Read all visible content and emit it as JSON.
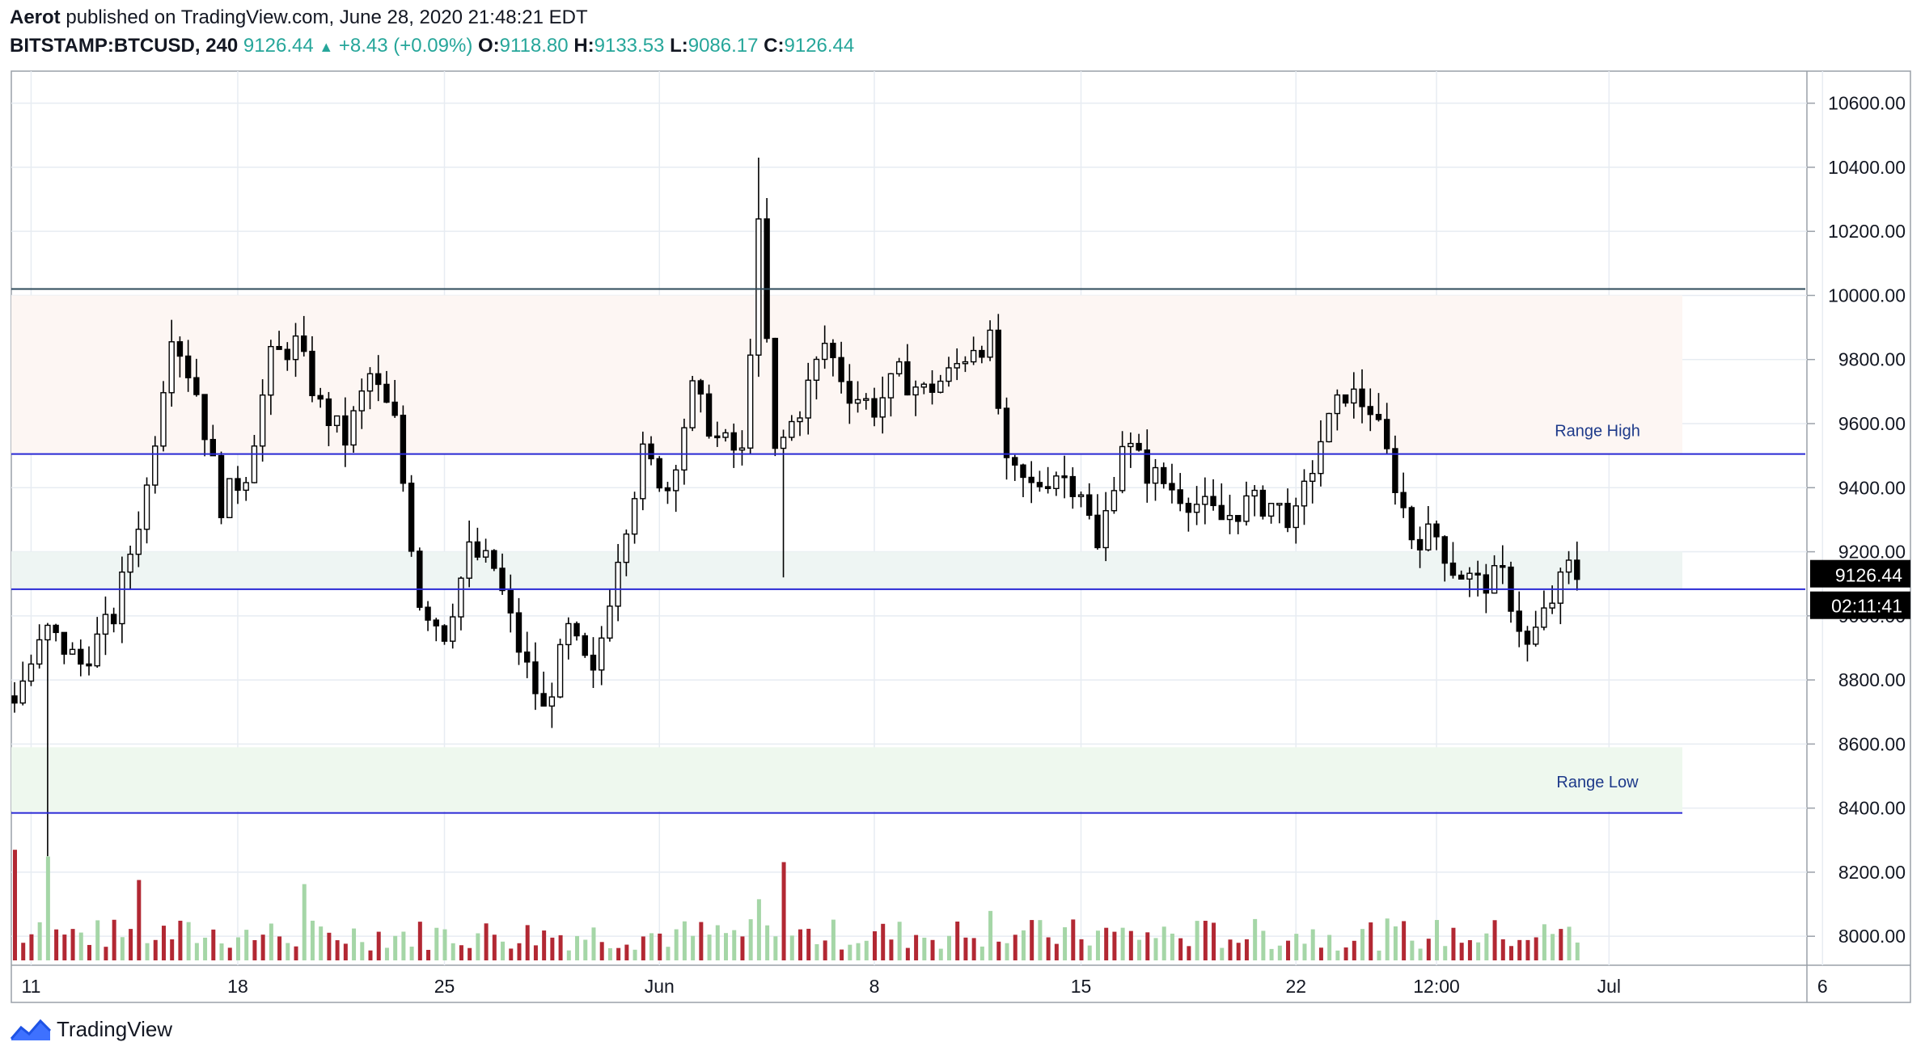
{
  "header": {
    "author": "Aerot",
    "published_text": "published on TradingView.com, June 28, 2020 21:48:21 EDT",
    "symbol": "BITSTAMP:BTCUSD, 240",
    "last": "9126.44",
    "change": "+8.43 (+0.09%)",
    "o_label": "O:",
    "o_value": "9118.80",
    "h_label": "H:",
    "h_value": "9133.53",
    "l_label": "L:",
    "l_value": "9086.17",
    "c_label": "C:",
    "c_value": "9126.44"
  },
  "footer": {
    "brand": "TradingView",
    "logo_icon": "tradingview-logo-icon"
  },
  "colors": {
    "up": "#26a69a",
    "down_volume": "#b22833",
    "up_volume": "#a5d6a7",
    "level_line": "#2929d4",
    "top_line": "#2e4a5a",
    "zone_top": "#fdf6f3",
    "zone_mid": "#eef5f3",
    "zone_low": "#eef8ee",
    "annotation": "#1e3a8a"
  },
  "chart_data": {
    "type": "candlestick",
    "title": "",
    "y_axis": {
      "ticks": [
        "10600.00",
        "10400.00",
        "10200.00",
        "10000.00",
        "9800.00",
        "9600.00",
        "9400.00",
        "9200.00",
        "9000.00",
        "8800.00",
        "8600.00",
        "8400.00",
        "8200.00",
        "8000.00"
      ],
      "range": [
        7950,
        10700
      ]
    },
    "x_axis": {
      "labels": [
        "11",
        "18",
        "25",
        "Jun",
        "8",
        "15",
        "22",
        "12:00",
        "Jul",
        "6"
      ]
    },
    "price_label": "9126.44",
    "countdown_label": "02:11:41",
    "levels": [
      {
        "name": "resistance",
        "value": 10020
      },
      {
        "name": "Range High",
        "value": 9505,
        "label": "Range High"
      },
      {
        "name": "support",
        "value": 9083
      },
      {
        "name": "Range Low",
        "value": 8385,
        "label": "Range Low"
      }
    ],
    "zones": [
      {
        "name": "upper-zone",
        "from": 9505,
        "to": 10000
      },
      {
        "name": "mid-zone",
        "from": 9083,
        "to": 9200
      },
      {
        "name": "low-zone",
        "from": 8390,
        "to": 8590
      }
    ],
    "price_path": [
      [
        0,
        8750
      ],
      [
        4,
        8950
      ],
      [
        8,
        8850
      ],
      [
        12,
        9000
      ],
      [
        16,
        9400
      ],
      [
        19,
        9900
      ],
      [
        22,
        9700
      ],
      [
        25,
        9350
      ],
      [
        28,
        9450
      ],
      [
        31,
        9800
      ],
      [
        34,
        9850
      ],
      [
        37,
        9650
      ],
      [
        40,
        9550
      ],
      [
        43,
        9750
      ],
      [
        46,
        9600
      ],
      [
        49,
        9050
      ],
      [
        52,
        8950
      ],
      [
        55,
        9200
      ],
      [
        58,
        9150
      ],
      [
        61,
        8900
      ],
      [
        64,
        8700
      ],
      [
        67,
        8950
      ],
      [
        70,
        8800
      ],
      [
        73,
        9200
      ],
      [
        76,
        9500
      ],
      [
        79,
        9400
      ],
      [
        82,
        9700
      ],
      [
        85,
        9550
      ],
      [
        88,
        9500
      ],
      [
        90,
        10200
      ],
      [
        92,
        9500
      ],
      [
        95,
        9650
      ],
      [
        98,
        9850
      ],
      [
        101,
        9700
      ],
      [
        104,
        9650
      ],
      [
        107,
        9750
      ],
      [
        110,
        9700
      ],
      [
        113,
        9750
      ],
      [
        116,
        9850
      ],
      [
        118,
        9850
      ],
      [
        120,
        9450
      ],
      [
        123,
        9400
      ],
      [
        126,
        9450
      ],
      [
        129,
        9400
      ],
      [
        131,
        9200
      ],
      [
        134,
        9550
      ],
      [
        137,
        9450
      ],
      [
        140,
        9400
      ],
      [
        143,
        9350
      ],
      [
        146,
        9300
      ],
      [
        149,
        9350
      ],
      [
        152,
        9350
      ],
      [
        155,
        9300
      ],
      [
        158,
        9550
      ],
      [
        161,
        9700
      ],
      [
        164,
        9650
      ],
      [
        166,
        9500
      ],
      [
        169,
        9250
      ],
      [
        172,
        9250
      ],
      [
        174,
        9150
      ],
      [
        177,
        9100
      ],
      [
        180,
        9120
      ],
      [
        183,
        8900
      ],
      [
        185,
        9000
      ],
      [
        188,
        9150
      ],
      [
        189,
        9126
      ]
    ],
    "volume_note": "red spikes near 11 and Jun, otherwise low"
  }
}
